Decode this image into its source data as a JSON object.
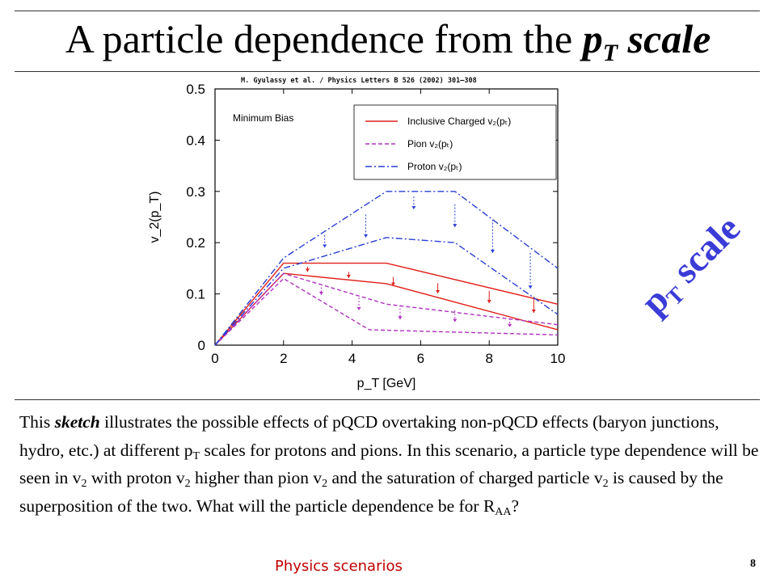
{
  "slide": {
    "title_pre": "A particle dependence from the ",
    "title_p": "p",
    "title_sub": "T",
    "title_post": " scale",
    "citation": "M. Gyulassy et al. / Physics Letters B 526 (2002) 301–308",
    "pt_scale_p": "p",
    "pt_scale_sub": "T",
    "pt_scale_word": " scale",
    "body": {
      "s1": "This ",
      "sketch": "sketch",
      "s2": " illustrates the possible effects of pQCD overtaking non-pQCD effects (baryon junctions, hydro, etc.) at different p",
      "sub_T": "T",
      "s3": " scales for protons and pions. In this scenario, a particle type dependence will be seen in v",
      "sub_2a": "2",
      "s4": " with proton v",
      "sub_2b": "2",
      "s5": " higher than pion v",
      "sub_2c": "2",
      "s6": " and the saturation of charged particle v",
      "sub_2d": "2",
      "s7": " is caused by the superposition of the two.  What will the particle dependence be for R",
      "sub_AA": "AA",
      "s8": "?"
    },
    "footer_label": "Physics scenarios",
    "page_number": "8"
  },
  "chart_data": {
    "type": "line",
    "annotation": "Minimum Bias",
    "xlabel": "p_T [GeV]",
    "ylabel": "v_2(p_T)",
    "xlim": [
      0,
      10
    ],
    "ylim": [
      0,
      0.5
    ],
    "x_ticks": [
      "0",
      "2",
      "4",
      "6",
      "8",
      "10"
    ],
    "y_ticks": [
      "0",
      "0.1",
      "0.2",
      "0.3",
      "0.4",
      "0.5"
    ],
    "legend_position": "top-right",
    "series": [
      {
        "name": "Inclusive Charged v₂(pₜ)",
        "color": "#e0201a",
        "dash": "solid",
        "bands": [
          {
            "x": [
              0,
              2,
              5,
              10
            ],
            "y": [
              0,
              0.16,
              0.16,
              0.08
            ]
          },
          {
            "x": [
              0,
              2,
              5,
              10
            ],
            "y": [
              0,
              0.14,
              0.12,
              0.03
            ]
          }
        ],
        "arrows": [
          [
            2.7,
            0.153,
            0.143
          ],
          [
            3.9,
            0.143,
            0.131
          ],
          [
            5.2,
            0.133,
            0.116
          ],
          [
            6.5,
            0.121,
            0.101
          ],
          [
            8.0,
            0.106,
            0.082
          ],
          [
            9.3,
            0.095,
            0.063
          ]
        ]
      },
      {
        "name": "Pion v₂(pₜ)",
        "color": "#b030c0",
        "dash": "dashed",
        "bands": [
          {
            "x": [
              0,
              2,
              5,
              10
            ],
            "y": [
              0,
              0.14,
              0.08,
              0.04
            ]
          },
          {
            "x": [
              0,
              2,
              4.5,
              10
            ],
            "y": [
              0,
              0.13,
              0.03,
              0.02
            ]
          }
        ],
        "arrows": [
          [
            3.1,
            0.113,
            0.098
          ],
          [
            4.2,
            0.093,
            0.068
          ],
          [
            5.4,
            0.078,
            0.05
          ],
          [
            7.0,
            0.068,
            0.045
          ],
          [
            8.6,
            0.052,
            0.035
          ]
        ]
      },
      {
        "name": "Proton v₂(pₜ)",
        "color": "#2a3fd6",
        "dash": "dashdot",
        "bands": [
          {
            "x": [
              0,
              2,
              5,
              7,
              10
            ],
            "y": [
              0,
              0.17,
              0.3,
              0.3,
              0.15
            ]
          },
          {
            "x": [
              0,
              2,
              5,
              7,
              10
            ],
            "y": [
              0,
              0.15,
              0.21,
              0.2,
              0.06
            ]
          }
        ],
        "arrows": [
          [
            3.2,
            0.215,
            0.19
          ],
          [
            4.4,
            0.255,
            0.21
          ],
          [
            5.8,
            0.29,
            0.265
          ],
          [
            7.0,
            0.275,
            0.23
          ],
          [
            8.1,
            0.245,
            0.18
          ],
          [
            9.2,
            0.18,
            0.11
          ]
        ]
      }
    ]
  }
}
